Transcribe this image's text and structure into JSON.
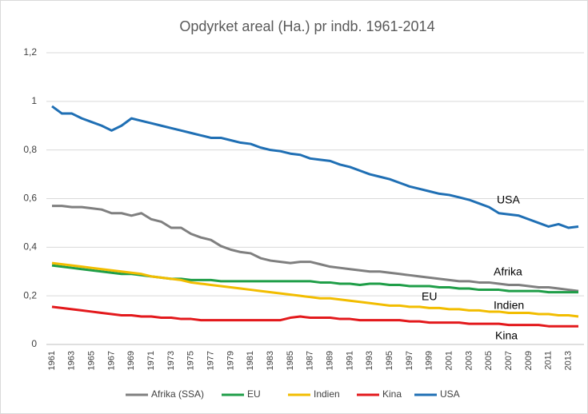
{
  "chart_data": {
    "type": "line",
    "title": "Opdyrket areal (Ha.) pr indb. 1961-2014",
    "categories": [
      "1961",
      null,
      "1963",
      null,
      "1965",
      null,
      "1967",
      null,
      "1969",
      null,
      "1971",
      null,
      "1973",
      null,
      "1975",
      null,
      "1977",
      null,
      "1979",
      null,
      "1981",
      null,
      "1983",
      null,
      "1985",
      null,
      "1987",
      null,
      "1989",
      null,
      "1991",
      null,
      "1993",
      null,
      "1995",
      null,
      "1997",
      null,
      "1999",
      null,
      "2001",
      null,
      "2003",
      null,
      "2005",
      null,
      "2007",
      null,
      "2009",
      null,
      "2011",
      null,
      "2013",
      null
    ],
    "series": [
      {
        "name": "Afrika (SSA)",
        "color": "#7f7f7f",
        "values": [
          0.57,
          0.57,
          0.565,
          0.565,
          0.56,
          0.555,
          0.54,
          0.54,
          0.53,
          0.54,
          0.515,
          0.505,
          0.48,
          0.48,
          0.455,
          0.44,
          0.43,
          0.405,
          0.39,
          0.38,
          0.375,
          0.355,
          0.345,
          0.34,
          0.335,
          0.34,
          0.34,
          0.33,
          0.32,
          0.315,
          0.31,
          0.305,
          0.3,
          0.3,
          0.295,
          0.29,
          0.285,
          0.28,
          0.275,
          0.27,
          0.265,
          0.26,
          0.26,
          0.255,
          0.255,
          0.25,
          0.245,
          0.245,
          0.24,
          0.235,
          0.235,
          0.23,
          0.225,
          0.22
        ]
      },
      {
        "name": "EU",
        "color": "#1f9e48",
        "values": [
          0.325,
          0.32,
          0.315,
          0.31,
          0.305,
          0.3,
          0.295,
          0.29,
          0.29,
          0.285,
          0.28,
          0.275,
          0.27,
          0.27,
          0.265,
          0.265,
          0.265,
          0.26,
          0.26,
          0.26,
          0.26,
          0.26,
          0.26,
          0.26,
          0.26,
          0.26,
          0.26,
          0.255,
          0.255,
          0.25,
          0.25,
          0.245,
          0.25,
          0.25,
          0.245,
          0.245,
          0.24,
          0.24,
          0.24,
          0.235,
          0.235,
          0.23,
          0.23,
          0.225,
          0.225,
          0.225,
          0.22,
          0.22,
          0.22,
          0.22,
          0.215,
          0.215,
          0.215,
          0.215
        ]
      },
      {
        "name": "Indien",
        "color": "#f2bd00",
        "values": [
          0.335,
          0.33,
          0.325,
          0.32,
          0.315,
          0.31,
          0.305,
          0.3,
          0.295,
          0.29,
          0.28,
          0.275,
          0.27,
          0.265,
          0.255,
          0.25,
          0.245,
          0.24,
          0.235,
          0.23,
          0.225,
          0.22,
          0.215,
          0.21,
          0.205,
          0.2,
          0.195,
          0.19,
          0.19,
          0.185,
          0.18,
          0.175,
          0.17,
          0.165,
          0.16,
          0.16,
          0.155,
          0.155,
          0.15,
          0.15,
          0.145,
          0.145,
          0.14,
          0.14,
          0.135,
          0.135,
          0.13,
          0.13,
          0.13,
          0.125,
          0.125,
          0.12,
          0.12,
          0.115
        ]
      },
      {
        "name": "Kina",
        "color": "#e3191c",
        "values": [
          0.155,
          0.15,
          0.145,
          0.14,
          0.135,
          0.13,
          0.125,
          0.12,
          0.12,
          0.115,
          0.115,
          0.11,
          0.11,
          0.105,
          0.105,
          0.1,
          0.1,
          0.1,
          0.1,
          0.1,
          0.1,
          0.1,
          0.1,
          0.1,
          0.11,
          0.115,
          0.11,
          0.11,
          0.11,
          0.105,
          0.105,
          0.1,
          0.1,
          0.1,
          0.1,
          0.1,
          0.095,
          0.095,
          0.09,
          0.09,
          0.09,
          0.09,
          0.085,
          0.085,
          0.085,
          0.085,
          0.08,
          0.08,
          0.08,
          0.08,
          0.075,
          0.075,
          0.075,
          0.075
        ]
      },
      {
        "name": "USA",
        "color": "#1f6fb4",
        "values": [
          0.98,
          0.95,
          0.95,
          0.93,
          0.915,
          0.9,
          0.88,
          0.9,
          0.93,
          0.92,
          0.91,
          0.9,
          0.89,
          0.88,
          0.87,
          0.86,
          0.85,
          0.85,
          0.84,
          0.83,
          0.825,
          0.81,
          0.8,
          0.795,
          0.785,
          0.78,
          0.765,
          0.76,
          0.755,
          0.74,
          0.73,
          0.715,
          0.7,
          0.69,
          0.68,
          0.665,
          0.65,
          0.64,
          0.63,
          0.62,
          0.615,
          0.605,
          0.595,
          0.58,
          0.565,
          0.54,
          0.535,
          0.53,
          0.515,
          0.5,
          0.485,
          0.495,
          0.48,
          0.485
        ]
      }
    ],
    "annotations": [
      "USA",
      "Afrika",
      "EU",
      "Indien",
      "Kina"
    ],
    "ylim": [
      0,
      1.2
    ],
    "yticks": [
      0,
      {
        "value": 0.2,
        "label": "0,2"
      },
      {
        "value": 0.4,
        "label": "0,4"
      },
      {
        "value": 0.6,
        "label": "0,6"
      },
      {
        "value": 0.8,
        "label": "0,8"
      },
      1,
      {
        "value": 1.2,
        "label": "1,2"
      }
    ],
    "grid": true,
    "legend": "bottom"
  }
}
